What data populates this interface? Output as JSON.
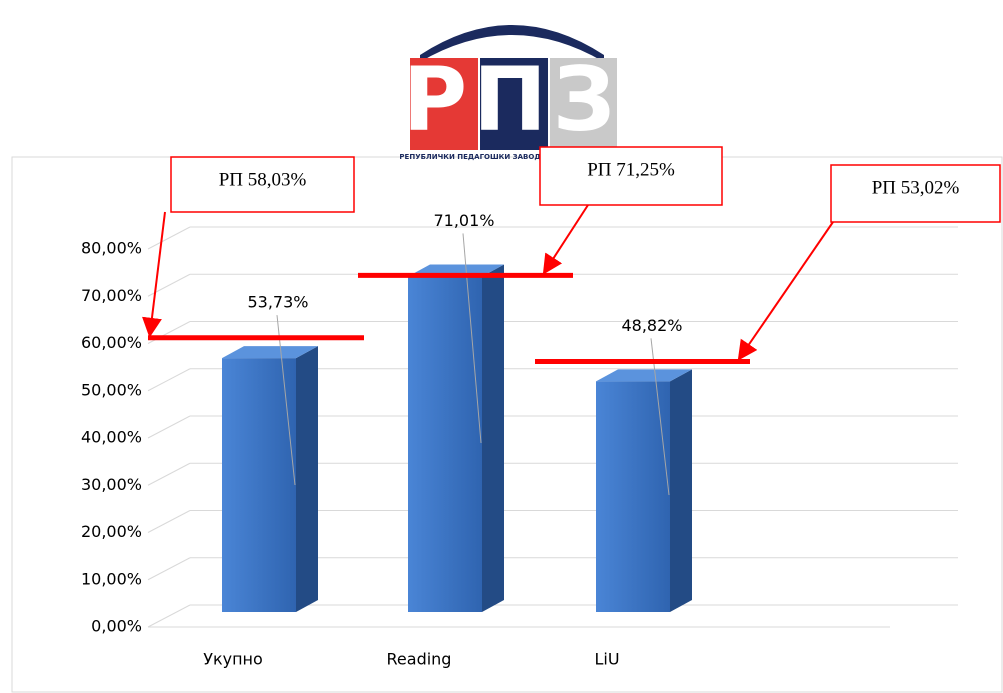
{
  "logo": {
    "letters": "РПЗ",
    "caption": "РЕПУБЛИЧКИ ПЕДАГОШКИ ЗАВОД"
  },
  "chart_data": {
    "type": "bar3d",
    "categories": [
      "Укупно",
      "Reading",
      "LiU"
    ],
    "values": [
      53.73,
      71.01,
      48.82
    ],
    "value_labels": [
      "53,73%",
      "71,01%",
      "48,82%"
    ],
    "color": "#3a72c2",
    "ylim": [
      0,
      80
    ],
    "yticks": [
      {
        "value": 0,
        "label": "0,00%"
      },
      {
        "value": 10,
        "label": "10,00%"
      },
      {
        "value": 20,
        "label": "20,00%"
      },
      {
        "value": 30,
        "label": "30,00%"
      },
      {
        "value": 40,
        "label": "40,00%"
      },
      {
        "value": 50,
        "label": "50,00%"
      },
      {
        "value": 60,
        "label": "60,00%"
      },
      {
        "value": 70,
        "label": "70,00%"
      },
      {
        "value": 80,
        "label": "80,00%"
      }
    ],
    "grid": true,
    "annotations": [
      {
        "text": "РП 58,03%",
        "value": 58.03,
        "color": "#ff0000"
      },
      {
        "text": "РП 71,25%",
        "value": 71.25,
        "color": "#ff0000"
      },
      {
        "text": "РП 53,02%",
        "value": 53.02,
        "color": "#ff0000"
      }
    ]
  }
}
